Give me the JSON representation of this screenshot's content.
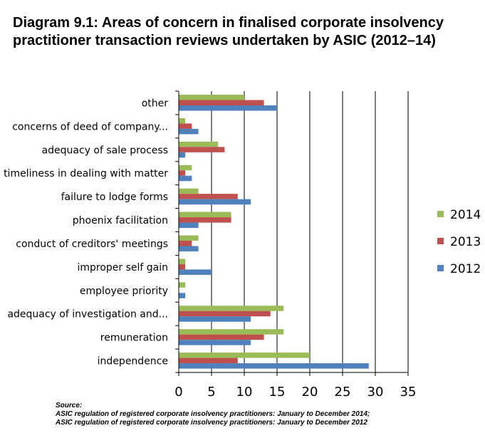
{
  "title": "Diagram 9.1: Areas of concern in finalised corporate insolvency practitioner transaction reviews undertaken by ASIC (2012–14)",
  "source": {
    "label": "Source:",
    "lines": [
      "ASIC regulation of registered corporate insolvency practitioners: January to December 2014;",
      "ASIC regulation of registered corporate insolvency practitioners: January to December 2012"
    ]
  },
  "chart_data": {
    "type": "bar",
    "orientation": "horizontal",
    "categories": [
      "other",
      "concerns of deed of company...",
      "adequacy of sale process",
      "timeliness in dealing with matter",
      "failure to lodge forms",
      "phoenix facilitation",
      "conduct of creditors' meetings",
      "improper self gain",
      "employee priority",
      "adequacy of investigation and...",
      "remuneration",
      "independence"
    ],
    "series": [
      {
        "name": "2014",
        "color": "#9BBB59",
        "values": [
          10,
          1,
          6,
          2,
          3,
          8,
          3,
          1,
          1,
          16,
          16,
          20
        ]
      },
      {
        "name": "2013",
        "color": "#C0504D",
        "values": [
          13,
          2,
          7,
          1,
          9,
          8,
          2,
          1,
          0,
          14,
          13,
          9
        ]
      },
      {
        "name": "2012",
        "color": "#4F81BD",
        "values": [
          15,
          3,
          1,
          2,
          11,
          3,
          3,
          5,
          1,
          11,
          11,
          29
        ]
      }
    ],
    "xlim": [
      0,
      35
    ],
    "xticks": [
      0,
      5,
      10,
      15,
      20,
      25,
      30,
      35
    ],
    "grid": "vertical",
    "legend": "right"
  }
}
